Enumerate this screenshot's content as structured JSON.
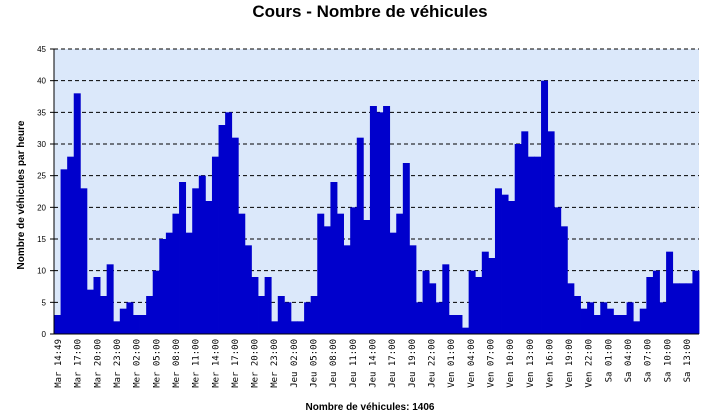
{
  "chart_data": {
    "type": "bar",
    "title": "Cours - Nombre de véhicules",
    "xlabel": "Nombre de véhicules: 1406",
    "ylabel": "Nombre de véhicules par heure",
    "ylim": [
      0,
      45
    ],
    "yticks": [
      0,
      5,
      10,
      15,
      20,
      25,
      30,
      35,
      40,
      45
    ],
    "grid": true,
    "legend": "none",
    "colors": {
      "bar": "#0000cc",
      "plot_background": "#dbe8fa",
      "grid": "#000000"
    },
    "x_tick_labels": [
      "Mar 14:49",
      "Mar 17:00",
      "Mar 20:00",
      "Mar 23:00",
      "Mer 02:00",
      "Mer 05:00",
      "Mer 08:00",
      "Mer 11:00",
      "Mer 14:00",
      "Mer 17:00",
      "Mer 20:00",
      "Mer 23:00",
      "Jeu 02:00",
      "Jeu 05:00",
      "Jeu 08:00",
      "Jeu 11:00",
      "Jeu 14:00",
      "Jeu 17:00",
      "Jeu 19:00",
      "Jeu 22:00",
      "Ven 01:00",
      "Ven 04:00",
      "Ven 07:00",
      "Ven 10:00",
      "Ven 13:00",
      "Ven 16:00",
      "Ven 19:00",
      "Ven 22:00",
      "Sa 01:00",
      "Sa 04:00",
      "Sa 07:00",
      "Sa 10:00",
      "Sa 13:00"
    ],
    "values": [
      3,
      26,
      28,
      38,
      23,
      7,
      9,
      6,
      11,
      2,
      4,
      5,
      3,
      3,
      6,
      10,
      15,
      16,
      19,
      24,
      16,
      23,
      25,
      21,
      28,
      33,
      35,
      31,
      19,
      14,
      9,
      6,
      9,
      2,
      6,
      5,
      2,
      2,
      5,
      6,
      19,
      17,
      24,
      19,
      14,
      20,
      31,
      18,
      36,
      35,
      36,
      16,
      19,
      27,
      14,
      5,
      10,
      8,
      5,
      11,
      3,
      3,
      1,
      10,
      9,
      13,
      12,
      23,
      22,
      21,
      30,
      32,
      28,
      28,
      40,
      32,
      20,
      17,
      8,
      6,
      4,
      5,
      3,
      5,
      4,
      3,
      3,
      5,
      2,
      4,
      9,
      10,
      5,
      13,
      8,
      8,
      8,
      10
    ]
  }
}
